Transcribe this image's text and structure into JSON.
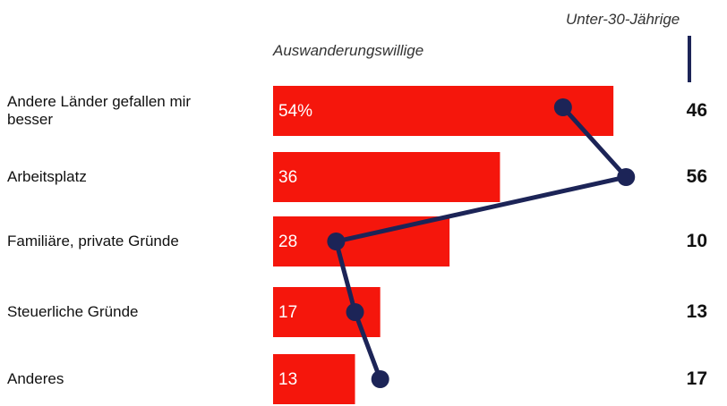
{
  "chart_data": {
    "type": "bar_line",
    "categories": [
      "Andere Länder gefallen mir besser",
      "Arbeitsplatz",
      "Familiäre, private Gründe",
      "Steuerliche Gründe",
      "Anderes"
    ],
    "series": [
      {
        "name": "Auswanderungswillige",
        "color": "#f5160c",
        "values": [
          54,
          36,
          28,
          17,
          13
        ],
        "value_labels": [
          "54%",
          "36",
          "28",
          "17",
          "13"
        ]
      },
      {
        "name": "Unter-30-Jährige",
        "color": "#1c2457",
        "values": [
          46,
          56,
          10,
          13,
          17
        ]
      }
    ]
  }
}
